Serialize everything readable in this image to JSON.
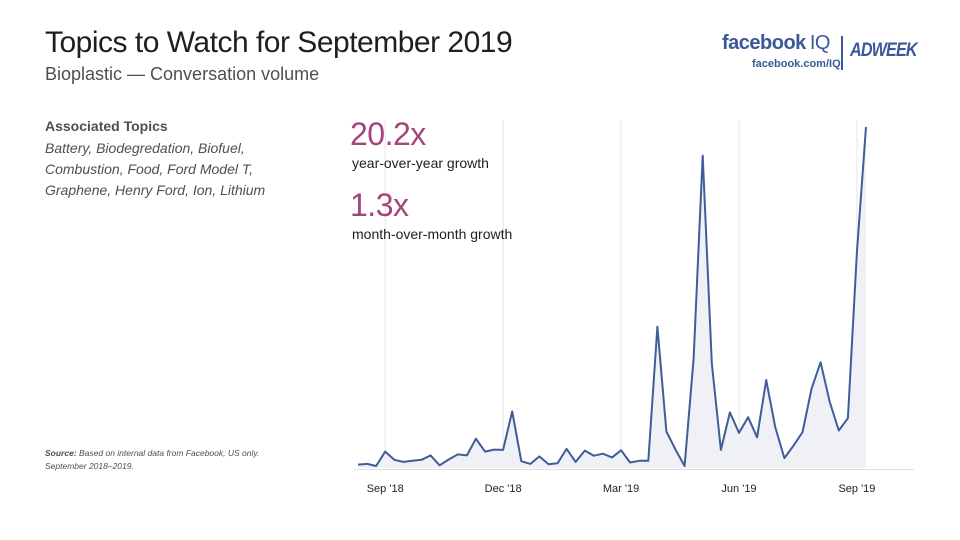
{
  "header": {
    "title": "Topics to Watch for September 2019",
    "subtitle": "Bioplastic — Conversation volume"
  },
  "brand": {
    "facebook": "facebook",
    "iq": "IQ",
    "url": "facebook.com/IQ",
    "adweek": "ADWEEK"
  },
  "associated": {
    "heading": "Associated Topics",
    "list": "Battery, Biodegredation, Biofuel, Combustion, Food, Ford Model T, Graphene, Henry Ford, Ion, Lithium"
  },
  "source": {
    "label": "Source:",
    "text": " Based on internal data from Facebook, US only. September 2018–2019."
  },
  "stats": [
    {
      "value": "20.2x",
      "label": "year-over-year growth"
    },
    {
      "value": "1.3x",
      "label": "month-over-month growth"
    }
  ],
  "colors": {
    "line": "#3f5d99",
    "area": "#eff1f7",
    "accent": "#a4447c",
    "brand": "#3b5998"
  },
  "chart_data": {
    "type": "area",
    "title": "Bioplastic — Conversation volume",
    "xlabel": "",
    "ylabel": "",
    "grid": "vertical",
    "legend": "none",
    "ylim": [
      0,
      100
    ],
    "x_ticks": [
      {
        "label": "Sep '18",
        "index": 3
      },
      {
        "label": "Dec '18",
        "index": 16
      },
      {
        "label": "Mar '19",
        "index": 29
      },
      {
        "label": "Jun '19",
        "index": 42
      },
      {
        "label": "Sep '19",
        "index": 55
      }
    ],
    "series": [
      {
        "values": [
          1.0,
          1.2,
          0.6,
          4.8,
          2.4,
          1.8,
          2.1,
          2.4,
          3.7,
          0.8,
          2.5,
          4.0,
          3.7,
          8.6,
          4.8,
          5.4,
          5.3,
          16.6,
          2.0,
          1.2,
          3.4,
          1.1,
          1.4,
          5.6,
          1.8,
          5.1,
          3.6,
          4.2,
          3.1,
          5.2,
          1.6,
          2.1,
          2.1,
          41.4,
          10.7,
          5.4,
          0.6,
          32.0,
          91.6,
          30.7,
          5.3,
          16.3,
          10.3,
          14.9,
          9.0,
          25.8,
          11.9,
          2.9,
          6.5,
          10.5,
          23.3,
          31.0,
          19.4,
          11.0,
          14.6,
          63.3,
          100.0
        ]
      }
    ]
  }
}
